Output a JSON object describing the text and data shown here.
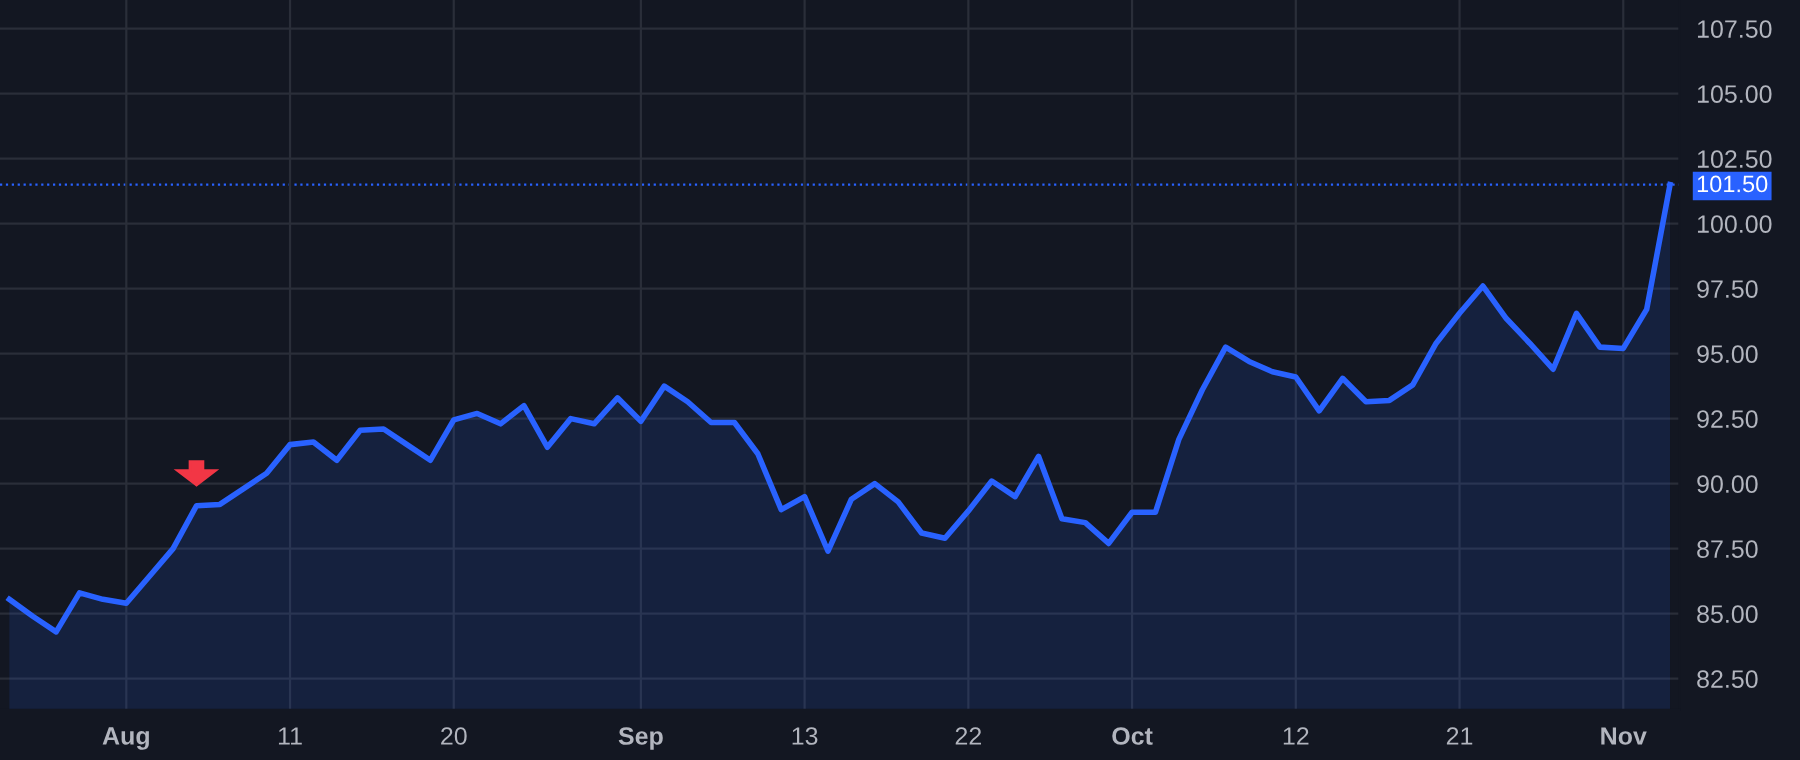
{
  "chart_data": {
    "type": "area",
    "categories": [
      null,
      null,
      null,
      null,
      null,
      "Aug",
      null,
      null,
      null,
      null,
      null,
      null,
      "11",
      null,
      null,
      null,
      null,
      null,
      null,
      "20",
      null,
      null,
      null,
      null,
      null,
      null,
      null,
      "Sep",
      null,
      null,
      null,
      null,
      null,
      null,
      "13",
      null,
      null,
      null,
      null,
      null,
      null,
      "22",
      null,
      null,
      null,
      null,
      null,
      null,
      "Oct",
      null,
      null,
      null,
      null,
      null,
      null,
      "12",
      null,
      null,
      null,
      null,
      null,
      null,
      "21",
      null,
      null,
      null,
      null,
      null,
      null,
      "Nov",
      null,
      null
    ],
    "series": [
      {
        "color": "#2962ff",
        "values": [
          85.55,
          84.9,
          84.3,
          85.8,
          85.55,
          85.4,
          86.45,
          87.5,
          89.15,
          89.2,
          89.8,
          90.4,
          91.5,
          91.6,
          90.9,
          92.05,
          92.1,
          91.5,
          90.9,
          92.45,
          92.7,
          92.3,
          93.0,
          91.4,
          92.5,
          92.3,
          93.3,
          92.4,
          93.75,
          93.15,
          92.35,
          92.35,
          91.15,
          89.0,
          89.5,
          87.4,
          89.4,
          90.0,
          89.3,
          88.1,
          87.9,
          88.95,
          90.1,
          89.5,
          91.05,
          88.65,
          88.5,
          87.7,
          88.9,
          88.9,
          91.7,
          93.6,
          95.25,
          94.7,
          94.3,
          94.1,
          92.8,
          94.05,
          93.15,
          93.2,
          93.8,
          95.4,
          96.55,
          97.6,
          96.35,
          95.4,
          94.4,
          96.55,
          95.25,
          95.2,
          96.7,
          101.5
        ]
      }
    ],
    "ylim": [
      81.3,
      108.6
    ],
    "yticks": [
      {
        "value": 82.5,
        "label": "82.50"
      },
      {
        "value": 85,
        "label": "85.00"
      },
      {
        "value": 87.5,
        "label": "87.50"
      },
      {
        "value": 90,
        "label": "90.00"
      },
      {
        "value": 92.5,
        "label": "92.50"
      },
      {
        "value": 95,
        "label": "95.00"
      },
      {
        "value": 97.5,
        "label": "97.50"
      },
      {
        "value": 100,
        "label": "100.00"
      },
      {
        "value": 102.5,
        "label": "102.50"
      },
      {
        "value": 105,
        "label": "105.00"
      },
      {
        "value": 107.5,
        "label": "107.50"
      }
    ],
    "ref_lines": [
      {
        "axis": "y",
        "value": 101.5,
        "label": "101.50",
        "color": "#2962ff",
        "line_style": "dotted"
      }
    ],
    "grid": true,
    "marker": "none",
    "line_style": "solid"
  }
}
